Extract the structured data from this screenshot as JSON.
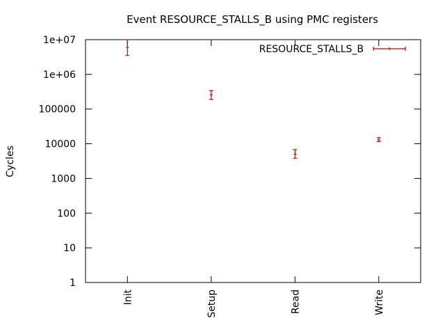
{
  "chart_data": {
    "type": "scatter",
    "title": "Event RESOURCE_STALLS_B using PMC registers",
    "xlabel": "",
    "ylabel": "Cycles",
    "categories": [
      "Init",
      "Setup",
      "Read",
      "Write"
    ],
    "y_scale": "log",
    "ylim": [
      1,
      10000000
    ],
    "y_tick_labels": [
      "1",
      "10",
      "100",
      "1000",
      "10000",
      "100000",
      "1e+06",
      "1e+07"
    ],
    "legend_position": "top-right",
    "grid": false,
    "series": [
      {
        "name": "RESOURCE_STALLS_B",
        "color": "#cc0000",
        "style": "errorbars",
        "points": [
          {
            "x": "Init",
            "y": 6000000,
            "low": 3500000,
            "high": 10000000
          },
          {
            "x": "Setup",
            "y": 260000,
            "low": 190000,
            "high": 340000
          },
          {
            "x": "Read",
            "y": 5000,
            "low": 3800,
            "high": 6800
          },
          {
            "x": "Write",
            "y": 13000,
            "low": 11500,
            "high": 15000
          }
        ]
      }
    ]
  }
}
